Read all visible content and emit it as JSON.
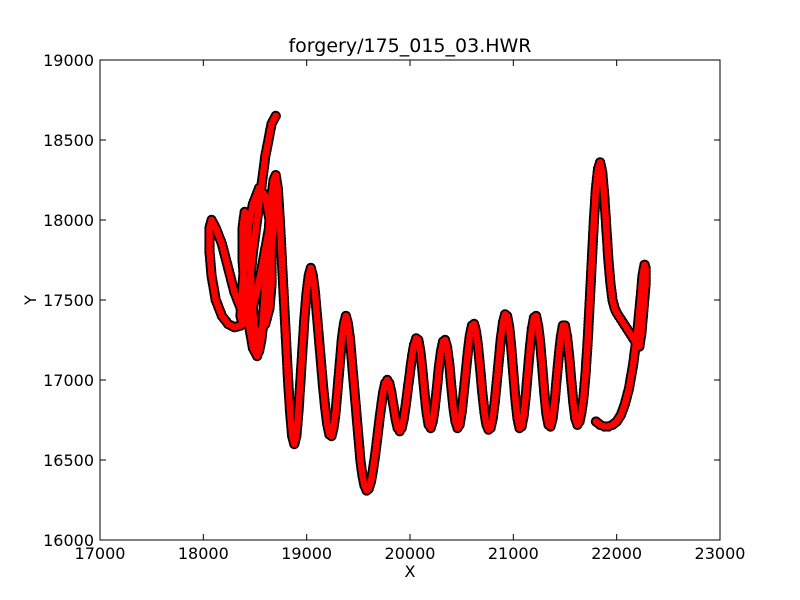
{
  "chart_data": {
    "type": "line",
    "title": "forgery/175_015_03.HWR",
    "xlabel": "X",
    "ylabel": "Y",
    "xlim": [
      17000,
      23000
    ],
    "ylim": [
      16000,
      19000
    ],
    "x_ticks": [
      17000,
      18000,
      19000,
      20000,
      21000,
      22000,
      23000
    ],
    "y_ticks": [
      16000,
      16500,
      17000,
      17500,
      18000,
      18500,
      19000
    ],
    "x_tick_labels": [
      "17000",
      "18000",
      "19000",
      "20000",
      "21000",
      "22000",
      "23000"
    ],
    "y_tick_labels": [
      "16000",
      "16500",
      "17000",
      "17500",
      "18000",
      "18500",
      "19000"
    ],
    "grid": false,
    "legend": "none",
    "colors": {
      "pen_path": "#ff0000",
      "pen_markers": "#ff0000",
      "pen_marker_edge": "#000000"
    },
    "series": [
      {
        "marker": "circle",
        "x": [
          18700,
          18660,
          18600,
          18540,
          18480,
          18440,
          18400,
          18380,
          18360,
          18380,
          18420,
          18480,
          18540,
          18600,
          18640,
          18660,
          18660,
          18640,
          18600,
          18540,
          18480,
          18420,
          18360,
          18300,
          18240,
          18180,
          18120,
          18080,
          18060,
          18060,
          18080,
          18120,
          18180,
          18240,
          18300,
          18360,
          18420,
          18480,
          18520,
          18560,
          18600,
          18640,
          18680,
          18700,
          18720,
          18700,
          18680,
          18640,
          18600,
          18560,
          18520,
          18480,
          18440,
          18400,
          18380,
          18380,
          18400,
          18420,
          18440,
          18460,
          18480,
          18500,
          18520,
          18540,
          18560,
          18580,
          18600,
          18620,
          18640,
          18660,
          18680,
          18700,
          18720,
          18740,
          18760,
          18780,
          18800,
          18820,
          18840,
          18860,
          18880,
          18900,
          18920,
          18940,
          18960,
          18980,
          19000,
          19020,
          19040,
          19060,
          19080,
          19100,
          19120,
          19140,
          19160,
          19180,
          19200,
          19220,
          19240,
          19260,
          19280,
          19300,
          19320,
          19340,
          19360,
          19380,
          19400,
          19420,
          19440,
          19460,
          19480,
          19500,
          19520,
          19540,
          19560,
          19580,
          19600,
          19620,
          19640,
          19660,
          19680,
          19700,
          19720,
          19740,
          19760,
          19780,
          19800,
          19820,
          19840,
          19860,
          19880,
          19900,
          19920,
          19940,
          19960,
          19980,
          20000,
          20020,
          20040,
          20060,
          20080,
          20100,
          20120,
          20140,
          20160,
          20180,
          20200,
          20220,
          20240,
          20260,
          20280,
          20300,
          20320,
          20340,
          20360,
          20380,
          20400,
          20420,
          20440,
          20460,
          20480,
          20500,
          20520,
          20540,
          20560,
          20580,
          20600,
          20620,
          20640,
          20660,
          20680,
          20700,
          20720,
          20740,
          20760,
          20780,
          20800,
          20820,
          20840,
          20860,
          20880,
          20900,
          20920,
          20940,
          20960,
          20980,
          21000,
          21020,
          21040,
          21060,
          21080,
          21100,
          21120,
          21140,
          21160,
          21180,
          21200,
          21220,
          21240,
          21260,
          21280,
          21300,
          21320,
          21340,
          21360,
          21380,
          21400,
          21420,
          21440,
          21460,
          21480,
          21500,
          21520,
          21540,
          21560,
          21580,
          21600,
          21620,
          21640,
          21660,
          21680,
          21700,
          21720,
          21740,
          21760,
          21780,
          21800,
          21820,
          21840,
          21860,
          21880,
          21900,
          21920,
          21940,
          21960,
          21980,
          22000,
          22020,
          22040,
          22060,
          22080,
          22100,
          22120,
          22140,
          22160,
          22180,
          22200,
          22220,
          22240,
          22260,
          22280,
          22280,
          22270,
          22250,
          22230,
          22200,
          22160,
          22120,
          22080,
          22040,
          22000,
          21960,
          21920,
          21880,
          21840,
          21800
        ],
        "y": [
          18650,
          18600,
          18400,
          18100,
          17800,
          17550,
          17400,
          17350,
          17400,
          17600,
          17900,
          18100,
          18200,
          18150,
          18000,
          17800,
          17600,
          17450,
          17350,
          17300,
          17320,
          17380,
          17450,
          17550,
          17700,
          17850,
          17950,
          18000,
          17950,
          17800,
          17650,
          17500,
          17400,
          17350,
          17330,
          17340,
          17380,
          17460,
          17560,
          17680,
          17820,
          17960,
          18080,
          18160,
          18200,
          18120,
          17950,
          17700,
          17450,
          17250,
          17150,
          17200,
          17350,
          17550,
          17750,
          17950,
          18050,
          18000,
          17850,
          17650,
          17450,
          17300,
          17200,
          17180,
          17250,
          17400,
          17600,
          17800,
          18000,
          18150,
          18250,
          18280,
          18200,
          18000,
          17750,
          17500,
          17250,
          17000,
          16800,
          16650,
          16600,
          16650,
          16800,
          17000,
          17200,
          17400,
          17550,
          17650,
          17700,
          17650,
          17550,
          17400,
          17250,
          17100,
          16950,
          16820,
          16720,
          16660,
          16650,
          16700,
          16800,
          16950,
          17100,
          17250,
          17350,
          17400,
          17350,
          17250,
          17100,
          16950,
          16800,
          16650,
          16500,
          16400,
          16340,
          16310,
          16320,
          16360,
          16430,
          16520,
          16620,
          16730,
          16830,
          16920,
          16980,
          17000,
          16980,
          16920,
          16840,
          16760,
          16700,
          16680,
          16700,
          16760,
          16850,
          16950,
          17050,
          17150,
          17220,
          17260,
          17250,
          17180,
          17060,
          16920,
          16800,
          16720,
          16700,
          16740,
          16830,
          16950,
          17080,
          17180,
          17240,
          17250,
          17200,
          17100,
          16960,
          16830,
          16740,
          16700,
          16720,
          16800,
          16920,
          17050,
          17180,
          17280,
          17340,
          17350,
          17300,
          17200,
          17060,
          16920,
          16800,
          16720,
          16690,
          16700,
          16760,
          16860,
          16990,
          17130,
          17260,
          17360,
          17410,
          17400,
          17330,
          17200,
          17040,
          16880,
          16760,
          16700,
          16710,
          16780,
          16900,
          17050,
          17200,
          17320,
          17390,
          17400,
          17340,
          17230,
          17080,
          16920,
          16790,
          16720,
          16710,
          16760,
          16870,
          17010,
          17150,
          17270,
          17340,
          17340,
          17270,
          17150,
          17000,
          16860,
          16760,
          16720,
          16740,
          16800,
          16900,
          17050,
          17250,
          17500,
          17750,
          18000,
          18200,
          18320,
          18360,
          18300,
          18150,
          17950,
          17750,
          17600,
          17500,
          17450,
          17420,
          17400,
          17380,
          17360,
          17340,
          17320,
          17300,
          17280,
          17260,
          17240,
          17220,
          17210,
          17300,
          17450,
          17600,
          17700,
          17720,
          17650,
          17500,
          17300,
          17100,
          16950,
          16850,
          16780,
          16740,
          16720,
          16710,
          16710,
          16720,
          16740
        ]
      }
    ]
  }
}
